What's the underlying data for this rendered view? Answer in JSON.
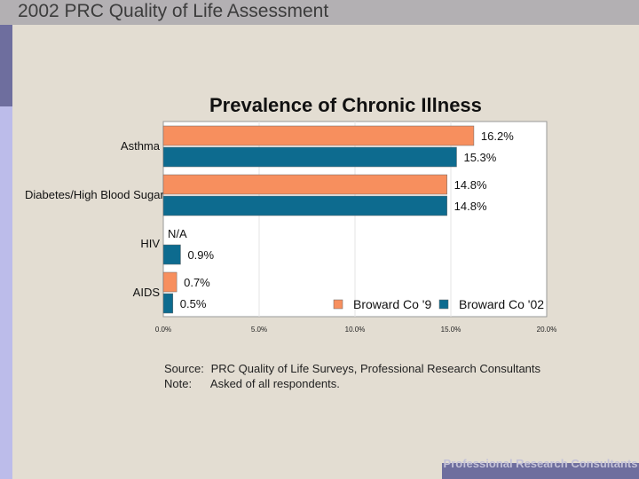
{
  "header": {
    "title": "2002 PRC Quality of Life Assessment"
  },
  "chart_data": {
    "type": "bar",
    "orientation": "horizontal",
    "title": "Prevalence of Chronic Illness",
    "categories": [
      "Asthma",
      "Diabetes/High Blood Sugar",
      "HIV",
      "AIDS"
    ],
    "series": [
      {
        "name": "Broward Co '9",
        "color": "#f78f5e",
        "values": [
          16.2,
          14.8,
          null,
          0.7
        ],
        "labels": [
          "16.2%",
          "14.8%",
          "N/A",
          "0.7%"
        ]
      },
      {
        "name": "Broward Co '02",
        "color": "#0d6b8f",
        "values": [
          15.3,
          14.8,
          0.9,
          0.5
        ],
        "labels": [
          "15.3%",
          "14.8%",
          "0.9%",
          "0.5%"
        ]
      }
    ],
    "xlim": [
      0,
      20
    ],
    "xticks": [
      0,
      5,
      10,
      15,
      20
    ],
    "xtick_labels": [
      "0.0%",
      "5.0%",
      "10.0%",
      "15.0%",
      "20.0%"
    ],
    "legend_position": "bottom-right",
    "grid": true
  },
  "source": {
    "source_label": "Source:",
    "source_text": "PRC Quality of Life Surveys, Professional Research Consultants",
    "note_label": "Note:",
    "note_text": "Asked of all respondents."
  },
  "footer": {
    "text": "Professional Research Consultants"
  }
}
